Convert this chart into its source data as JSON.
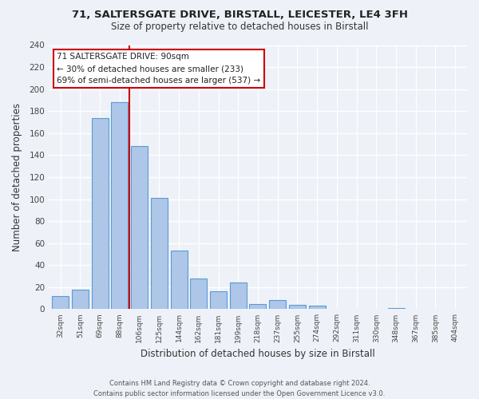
{
  "title1": "71, SALTERSGATE DRIVE, BIRSTALL, LEICESTER, LE4 3FH",
  "title2": "Size of property relative to detached houses in Birstall",
  "xlabel": "Distribution of detached houses by size in Birstall",
  "ylabel": "Number of detached properties",
  "bar_labels": [
    "32sqm",
    "51sqm",
    "69sqm",
    "88sqm",
    "106sqm",
    "125sqm",
    "144sqm",
    "162sqm",
    "181sqm",
    "199sqm",
    "218sqm",
    "237sqm",
    "255sqm",
    "274sqm",
    "292sqm",
    "311sqm",
    "330sqm",
    "348sqm",
    "367sqm",
    "385sqm",
    "404sqm"
  ],
  "bar_values": [
    12,
    18,
    174,
    188,
    148,
    101,
    53,
    28,
    16,
    24,
    5,
    8,
    4,
    3,
    0,
    0,
    0,
    1,
    0,
    0,
    0
  ],
  "bar_color": "#aec6e8",
  "bar_edge_color": "#5b9bd5",
  "annotation_title": "71 SALTERSGATE DRIVE: 90sqm",
  "annotation_line1": "← 30% of detached houses are smaller (233)",
  "annotation_line2": "69% of semi-detached houses are larger (537) →",
  "annotation_box_color": "white",
  "annotation_box_edge": "#cc0000",
  "ylim": [
    0,
    240
  ],
  "yticks": [
    0,
    20,
    40,
    60,
    80,
    100,
    120,
    140,
    160,
    180,
    200,
    220,
    240
  ],
  "footer1": "Contains HM Land Registry data © Crown copyright and database right 2024.",
  "footer2": "Contains public sector information licensed under the Open Government Licence v3.0.",
  "bg_color": "#eef2f8"
}
